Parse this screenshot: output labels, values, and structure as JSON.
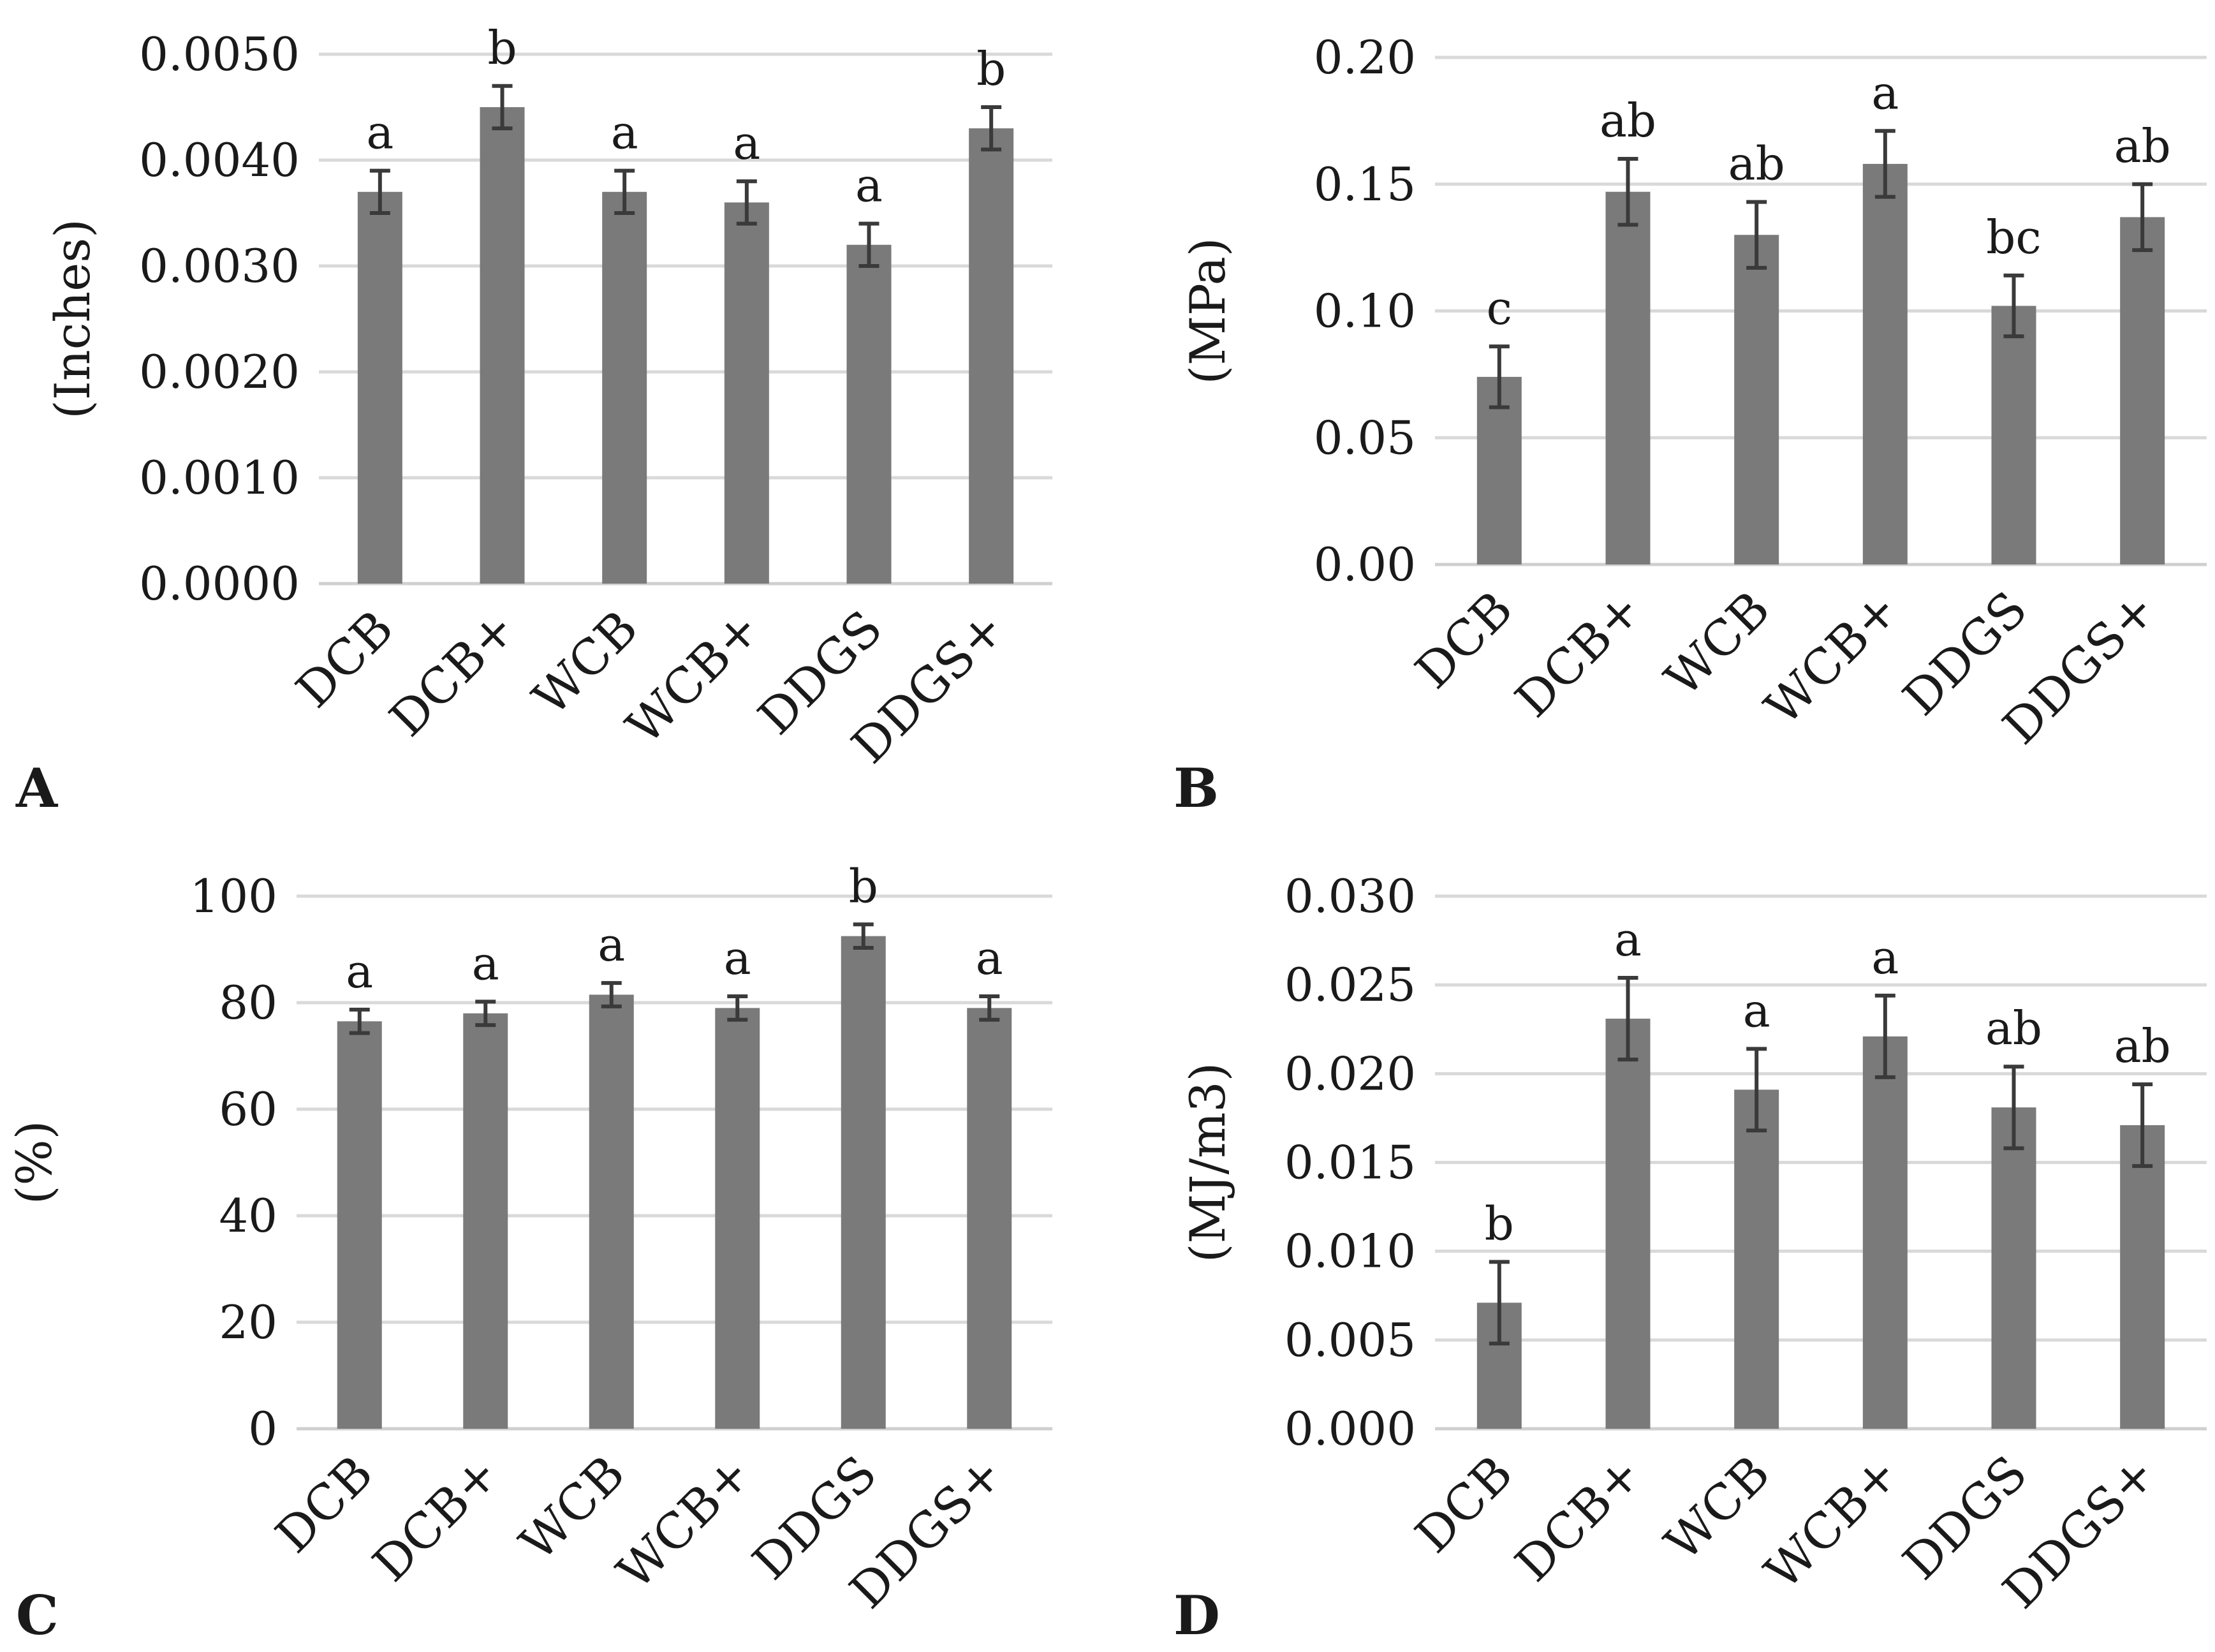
{
  "chart_data": [
    {
      "type": "bar",
      "panel_label": "A",
      "title": "",
      "xlabel": "",
      "ylabel": "(Inches)",
      "categories": [
        "DCB",
        "DCB+",
        "WCB",
        "WCB+",
        "DDGS",
        "DDGS+"
      ],
      "values": [
        0.0037,
        0.0045,
        0.0037,
        0.0036,
        0.0032,
        0.0043
      ],
      "errors": [
        0.0002,
        0.0002,
        0.0002,
        0.0002,
        0.0002,
        0.0002
      ],
      "significance": [
        "a",
        "b",
        "a",
        "a",
        "a",
        "b"
      ],
      "ylim": [
        0,
        0.005
      ],
      "yticks": [
        "0.0000",
        "0.0010",
        "0.0020",
        "0.0030",
        "0.0040",
        "0.0050"
      ],
      "grid": true
    },
    {
      "type": "bar",
      "panel_label": "B",
      "title": "",
      "xlabel": "",
      "ylabel": "(MPa)",
      "categories": [
        "DCB",
        "DCB+",
        "WCB",
        "WCB+",
        "DDGS",
        "DDGS+"
      ],
      "values": [
        0.074,
        0.147,
        0.13,
        0.158,
        0.102,
        0.137
      ],
      "errors": [
        0.012,
        0.013,
        0.013,
        0.013,
        0.012,
        0.013
      ],
      "significance": [
        "c",
        "ab",
        "ab",
        "a",
        "bc",
        "ab"
      ],
      "ylim": [
        0,
        0.2
      ],
      "yticks": [
        "0.00",
        "0.05",
        "0.10",
        "0.15",
        "0.20"
      ],
      "grid": true
    },
    {
      "type": "bar",
      "panel_label": "C",
      "title": "",
      "xlabel": "",
      "ylabel": "(%)",
      "categories": [
        "DCB",
        "DCB+",
        "WCB",
        "WCB+",
        "DDGS",
        "DDGS+"
      ],
      "values": [
        76.5,
        78,
        81.5,
        79,
        92.5,
        79
      ],
      "errors": [
        2.2,
        2.2,
        2.2,
        2.2,
        2.2,
        2.2
      ],
      "significance": [
        "a",
        "a",
        "a",
        "a",
        "b",
        "a"
      ],
      "ylim": [
        0,
        100
      ],
      "yticks": [
        "0",
        "20",
        "40",
        "60",
        "80",
        "100"
      ],
      "grid": true
    },
    {
      "type": "bar",
      "panel_label": "D",
      "title": "",
      "xlabel": "",
      "ylabel": "(MJ/m3)",
      "categories": [
        "DCB",
        "DCB+",
        "WCB",
        "WCB+",
        "DDGS",
        "DDGS+"
      ],
      "values": [
        0.0071,
        0.0231,
        0.0191,
        0.0221,
        0.0181,
        0.0171
      ],
      "errors": [
        0.0023,
        0.0023,
        0.0023,
        0.0023,
        0.0023,
        0.0023
      ],
      "significance": [
        "b",
        "a",
        "a",
        "a",
        "ab",
        "ab"
      ],
      "ylim": [
        0,
        0.03
      ],
      "yticks": [
        "0.000",
        "0.005",
        "0.010",
        "0.015",
        "0.020",
        "0.025",
        "0.030"
      ],
      "grid": true
    }
  ]
}
